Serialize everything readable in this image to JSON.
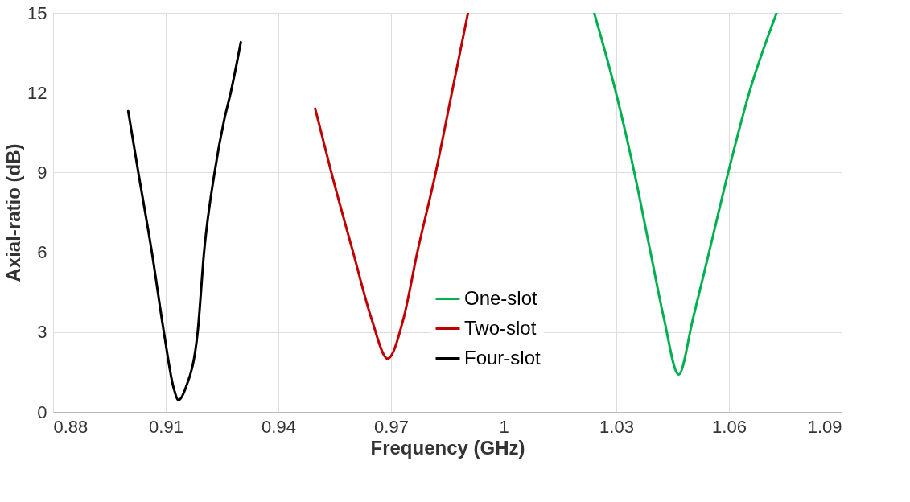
{
  "chart_data": {
    "type": "line",
    "xlabel": "Frequency (GHz)",
    "ylabel": "Axial-ratio (dB)",
    "xlim": [
      0.88,
      1.09
    ],
    "xticks": [
      {
        "value": 0.88,
        "label": "0.88"
      },
      {
        "value": 0.91,
        "label": "0.91"
      },
      {
        "value": 0.94,
        "label": "0.94"
      },
      {
        "value": 0.97,
        "label": "0.97"
      },
      1,
      {
        "value": 1.03,
        "label": "1.03"
      },
      {
        "value": 1.06,
        "label": "1.06"
      },
      {
        "value": 1.09,
        "label": "1.09"
      }
    ],
    "ylim": [
      0,
      15
    ],
    "yticks": [
      0,
      3,
      6,
      9,
      12,
      15
    ],
    "grid": true,
    "legend": "bottom",
    "marker": "none",
    "line_style": "solid",
    "series": [
      {
        "name": "One-slot",
        "color": "#00b050",
        "x": [
          1.0241,
          1.0299,
          1.0348,
          1.0391,
          1.0427,
          1.0466,
          1.0504,
          1.0547,
          1.0598,
          1.0654,
          1.0727
        ],
        "values": [
          15.0,
          12.0,
          9.0,
          6.0,
          3.5,
          1.4,
          3.5,
          6.0,
          9.0,
          12.0,
          15.0
        ]
      },
      {
        "name": "Two-slot",
        "color": "#c00000",
        "x": [
          0.9498,
          0.9541,
          0.9599,
          0.9648,
          0.9691,
          0.9733,
          0.977,
          0.9819,
          0.9862,
          0.9905
        ],
        "values": [
          11.4,
          9.0,
          6.0,
          3.5,
          2.0,
          3.5,
          6.0,
          9.0,
          12.0,
          15.0
        ]
      },
      {
        "name": "Four-slot",
        "color": "#000000",
        "x": [
          0.9,
          0.9027,
          0.9063,
          0.9095,
          0.9121,
          0.9134,
          0.9153,
          0.9185,
          0.9202,
          0.923,
          0.9256,
          0.9273,
          0.93
        ],
        "values": [
          11.3,
          9.0,
          6.0,
          3.0,
          0.9,
          0.45,
          0.9,
          3.0,
          6.0,
          9.0,
          11.0,
          12.0,
          13.9
        ]
      }
    ]
  }
}
